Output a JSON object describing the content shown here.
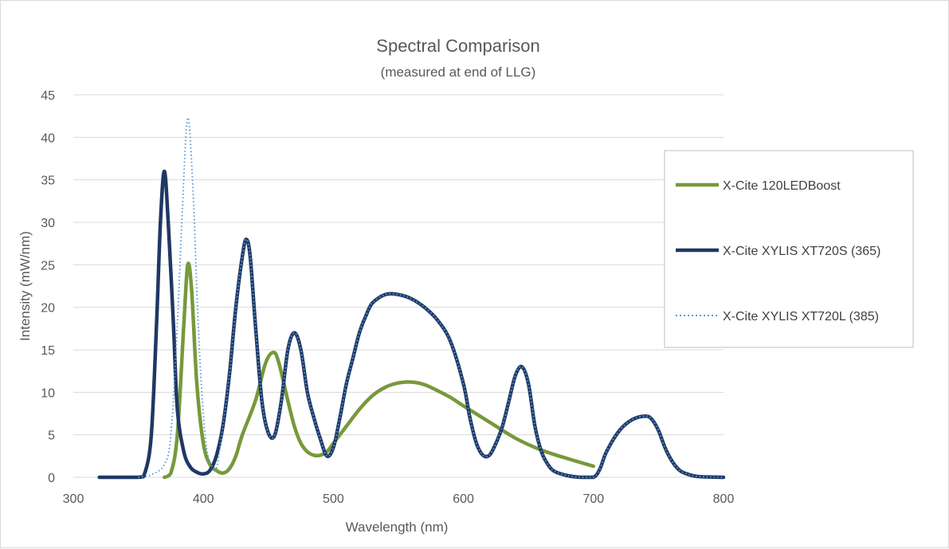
{
  "chart_data": {
    "type": "line",
    "title": "Spectral Comparison",
    "subtitle": "(measured at end of LLG)",
    "xlabel": "Wavelength (nm)",
    "ylabel": "Intensity (mW/nm)",
    "xlim": [
      300,
      800
    ],
    "ylim": [
      0,
      45
    ],
    "xticks": [
      "300",
      "400",
      "500",
      "600",
      "700",
      "800"
    ],
    "yticks": [
      "0",
      "5",
      "10",
      "15",
      "20",
      "25",
      "30",
      "35",
      "40",
      "45"
    ],
    "grid": "horizontal",
    "legend_position": "right",
    "series": [
      {
        "name": "X-Cite 120LEDBoost",
        "color": "#77993b",
        "style": "solid",
        "points": [
          [
            370,
            0
          ],
          [
            375,
            0.5
          ],
          [
            380,
            5
          ],
          [
            385,
            18
          ],
          [
            388,
            25
          ],
          [
            391,
            22
          ],
          [
            395,
            11
          ],
          [
            400,
            4
          ],
          [
            405,
            1.5
          ],
          [
            410,
            0.8
          ],
          [
            415,
            0.5
          ],
          [
            420,
            1
          ],
          [
            425,
            2.5
          ],
          [
            430,
            5
          ],
          [
            440,
            9
          ],
          [
            448,
            13.5
          ],
          [
            454,
            14.7
          ],
          [
            458,
            13.5
          ],
          [
            465,
            9
          ],
          [
            470,
            6
          ],
          [
            475,
            4
          ],
          [
            480,
            3
          ],
          [
            485,
            2.6
          ],
          [
            490,
            2.6
          ],
          [
            495,
            3
          ],
          [
            500,
            4
          ],
          [
            505,
            5
          ],
          [
            510,
            6
          ],
          [
            520,
            8
          ],
          [
            530,
            9.6
          ],
          [
            540,
            10.6
          ],
          [
            550,
            11.1
          ],
          [
            560,
            11.2
          ],
          [
            570,
            10.9
          ],
          [
            580,
            10.2
          ],
          [
            590,
            9.4
          ],
          [
            600,
            8.4
          ],
          [
            620,
            6.5
          ],
          [
            640,
            4.6
          ],
          [
            660,
            3.2
          ],
          [
            680,
            2.2
          ],
          [
            700,
            1.3
          ]
        ]
      },
      {
        "name": "X-Cite XYLIS XT720S (365)",
        "color": "#1f3864",
        "style": "solid",
        "points": [
          [
            320,
            0
          ],
          [
            350,
            0
          ],
          [
            355,
            0.5
          ],
          [
            360,
            5
          ],
          [
            364,
            18
          ],
          [
            367,
            30
          ],
          [
            370,
            36
          ],
          [
            373,
            30
          ],
          [
            377,
            18
          ],
          [
            380,
            8
          ],
          [
            385,
            3
          ],
          [
            390,
            1.2
          ],
          [
            395,
            0.6
          ],
          [
            400,
            0.4
          ],
          [
            405,
            0.8
          ],
          [
            410,
            2.5
          ],
          [
            415,
            6
          ],
          [
            420,
            12
          ],
          [
            425,
            20
          ],
          [
            430,
            26
          ],
          [
            433,
            28
          ],
          [
            436,
            26
          ],
          [
            440,
            18
          ],
          [
            445,
            9
          ],
          [
            450,
            5.2
          ],
          [
            455,
            5
          ],
          [
            460,
            9
          ],
          [
            465,
            15
          ],
          [
            470,
            17
          ],
          [
            475,
            15
          ],
          [
            480,
            10
          ],
          [
            485,
            7
          ],
          [
            490,
            4.5
          ],
          [
            495,
            2.5
          ],
          [
            500,
            3.5
          ],
          [
            505,
            7
          ],
          [
            510,
            11
          ],
          [
            515,
            14
          ],
          [
            520,
            17
          ],
          [
            525,
            19
          ],
          [
            530,
            20.5
          ],
          [
            540,
            21.5
          ],
          [
            550,
            21.5
          ],
          [
            560,
            21
          ],
          [
            570,
            20
          ],
          [
            580,
            18.5
          ],
          [
            590,
            16
          ],
          [
            600,
            11
          ],
          [
            605,
            7
          ],
          [
            610,
            4
          ],
          [
            615,
            2.6
          ],
          [
            620,
            2.6
          ],
          [
            625,
            4
          ],
          [
            630,
            6
          ],
          [
            635,
            9
          ],
          [
            640,
            12
          ],
          [
            645,
            13
          ],
          [
            650,
            11
          ],
          [
            655,
            6
          ],
          [
            660,
            3
          ],
          [
            665,
            1.5
          ],
          [
            670,
            0.7
          ],
          [
            680,
            0.2
          ],
          [
            690,
            0
          ],
          [
            700,
            0
          ],
          [
            705,
            1
          ],
          [
            710,
            3
          ],
          [
            720,
            5.5
          ],
          [
            730,
            6.8
          ],
          [
            740,
            7.2
          ],
          [
            745,
            6.8
          ],
          [
            750,
            5.5
          ],
          [
            755,
            3.5
          ],
          [
            760,
            2
          ],
          [
            765,
            1
          ],
          [
            770,
            0.5
          ],
          [
            780,
            0.1
          ],
          [
            800,
            0
          ]
        ]
      },
      {
        "name": "X-Cite XYLIS XT720L (385)",
        "color": "#5b9bd5",
        "style": "dotted",
        "points": [
          [
            350,
            0
          ],
          [
            360,
            0.3
          ],
          [
            370,
            1.5
          ],
          [
            375,
            5
          ],
          [
            380,
            18
          ],
          [
            384,
            32
          ],
          [
            388,
            42.3
          ],
          [
            392,
            34
          ],
          [
            395,
            22
          ],
          [
            398,
            12
          ],
          [
            402,
            4
          ],
          [
            406,
            1.5
          ],
          [
            410,
            1
          ],
          [
            415,
            6
          ],
          [
            420,
            12
          ],
          [
            425,
            20
          ],
          [
            430,
            26
          ],
          [
            433,
            28
          ],
          [
            436,
            26
          ],
          [
            440,
            18
          ],
          [
            445,
            9
          ],
          [
            450,
            5.2
          ],
          [
            455,
            5
          ],
          [
            460,
            9
          ],
          [
            465,
            15
          ],
          [
            470,
            17
          ],
          [
            475,
            15
          ],
          [
            480,
            10
          ],
          [
            485,
            7
          ],
          [
            490,
            4.5
          ],
          [
            495,
            2.5
          ],
          [
            500,
            3.5
          ],
          [
            505,
            7
          ],
          [
            510,
            11
          ],
          [
            515,
            14
          ],
          [
            520,
            17
          ],
          [
            525,
            19
          ],
          [
            530,
            20.5
          ],
          [
            540,
            21.5
          ],
          [
            550,
            21.5
          ],
          [
            560,
            21
          ],
          [
            570,
            20
          ],
          [
            580,
            18.5
          ],
          [
            590,
            16
          ],
          [
            600,
            11
          ],
          [
            605,
            7
          ],
          [
            610,
            4
          ],
          [
            615,
            2.6
          ],
          [
            620,
            2.6
          ],
          [
            625,
            4
          ],
          [
            630,
            6
          ],
          [
            635,
            9
          ],
          [
            640,
            12
          ],
          [
            645,
            13
          ],
          [
            650,
            11
          ],
          [
            655,
            6
          ],
          [
            660,
            3
          ],
          [
            665,
            1.5
          ],
          [
            670,
            0.7
          ],
          [
            680,
            0.2
          ],
          [
            690,
            0
          ],
          [
            700,
            0
          ],
          [
            705,
            1
          ],
          [
            710,
            3
          ],
          [
            720,
            5.5
          ],
          [
            730,
            6.8
          ],
          [
            740,
            7.2
          ],
          [
            745,
            6.8
          ],
          [
            750,
            5.5
          ],
          [
            755,
            3.5
          ],
          [
            760,
            2
          ],
          [
            765,
            1
          ],
          [
            770,
            0.5
          ],
          [
            780,
            0.1
          ],
          [
            800,
            0
          ]
        ]
      }
    ]
  }
}
